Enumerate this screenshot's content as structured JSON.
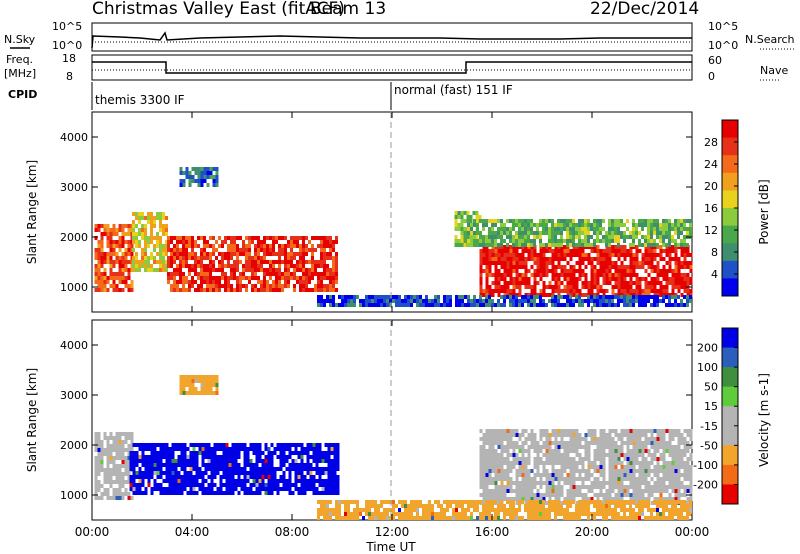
{
  "header": {
    "title": "Christmas Valley East (fitACF)",
    "beam": "Beam 13",
    "date": "22/Dec/2014"
  },
  "top_panels": {
    "nsky_label": "N.Sky",
    "nsearch_label": "N.Search",
    "nsky_ticks": [
      "10^5",
      "10^0"
    ],
    "nsky_right_ticks": [
      "10^5",
      "10^0"
    ],
    "freq_label_1": "Freq.",
    "freq_label_2": "[MHz]",
    "freq_ticks": [
      "18",
      "8"
    ],
    "nave_label": "Nave",
    "nave_ticks": [
      "60",
      "0"
    ],
    "cpid_label": "CPID",
    "cpid_segments": [
      {
        "text": "themis 3300 IF",
        "start_hour": 0
      },
      {
        "text": "normal (fast) 151 IF",
        "start_hour": 12
      }
    ]
  },
  "colors": {
    "power": [
      "#0000ee",
      "#1e50c8",
      "#3f8f6f",
      "#4aa84a",
      "#8ccc3c",
      "#e8d21e",
      "#f0a01c",
      "#f56a1a",
      "#e6301a",
      "#e60000"
    ],
    "velocity": [
      "#e60000",
      "#f36b16",
      "#f2a52c",
      "#b4b4b4",
      "#b4b4b4",
      "#5fcc3c",
      "#3f8f3f",
      "#2a5fbe",
      "#0000e6"
    ]
  },
  "chart_data": [
    {
      "type": "heatmap",
      "name": "power",
      "xlabel": "",
      "ylabel": "Slant Range [km]",
      "xlim": [
        0,
        24
      ],
      "ylim": [
        500,
        4500
      ],
      "y_ticks": [
        "1000",
        "2000",
        "3000",
        "4000"
      ],
      "x_ticks": [
        "00:00",
        "04:00",
        "08:00",
        "12:00",
        "16:00",
        "20:00",
        "00:00"
      ],
      "colorbar_label": "Power [dB]",
      "colorbar_ticks": [
        "28",
        "24",
        "20",
        "16",
        "12",
        "8",
        "4"
      ],
      "colorbar_range": [
        0,
        32
      ],
      "regions": [
        {
          "t0": 0.1,
          "t1": 1.6,
          "r0": 900,
          "r1": 2200,
          "level": 26
        },
        {
          "t0": 1.6,
          "t1": 3.0,
          "r0": 1300,
          "r1": 2500,
          "level": 18
        },
        {
          "t0": 3.0,
          "t1": 9.8,
          "r0": 900,
          "r1": 2000,
          "level": 28
        },
        {
          "t0": 3.5,
          "t1": 5.0,
          "r0": 3000,
          "r1": 3400,
          "level": 6
        },
        {
          "t0": 14.5,
          "t1": 15.5,
          "r0": 1800,
          "r1": 2500,
          "level": 14
        },
        {
          "t0": 15.5,
          "t1": 24.0,
          "r0": 800,
          "r1": 1800,
          "level": 30
        },
        {
          "t0": 15.0,
          "t1": 24.0,
          "r0": 1800,
          "r1": 2300,
          "level": 12
        },
        {
          "t0": 9.0,
          "t1": 24.0,
          "r0": 600,
          "r1": 800,
          "level": 4
        }
      ]
    },
    {
      "type": "heatmap",
      "name": "velocity",
      "xlabel": "Time UT",
      "ylabel": "Slant Range [km]",
      "xlim": [
        0,
        24
      ],
      "ylim": [
        500,
        4500
      ],
      "y_ticks": [
        "1000",
        "2000",
        "3000",
        "4000"
      ],
      "x_ticks": [
        "00:00",
        "04:00",
        "08:00",
        "12:00",
        "16:00",
        "20:00",
        "00:00"
      ],
      "colorbar_label": "Velocity [m s-1]",
      "colorbar_ticks": [
        "200",
        "100",
        "50",
        "15",
        "-15",
        "-50",
        "-100",
        "-200"
      ],
      "regions": [
        {
          "t0": 0.1,
          "t1": 1.6,
          "r0": 900,
          "r1": 2200,
          "level": "grey"
        },
        {
          "t0": 1.5,
          "t1": 9.8,
          "r0": 1000,
          "r1": 2000,
          "level": "blue"
        },
        {
          "t0": 3.5,
          "t1": 5.0,
          "r0": 3000,
          "r1": 3400,
          "level": "orange"
        },
        {
          "t0": 15.5,
          "t1": 24.0,
          "r0": 800,
          "r1": 2300,
          "level": "grey"
        },
        {
          "t0": 9.0,
          "t1": 24.0,
          "r0": 500,
          "r1": 900,
          "level": "orange"
        }
      ]
    }
  ],
  "x_axis_title": "Time UT"
}
